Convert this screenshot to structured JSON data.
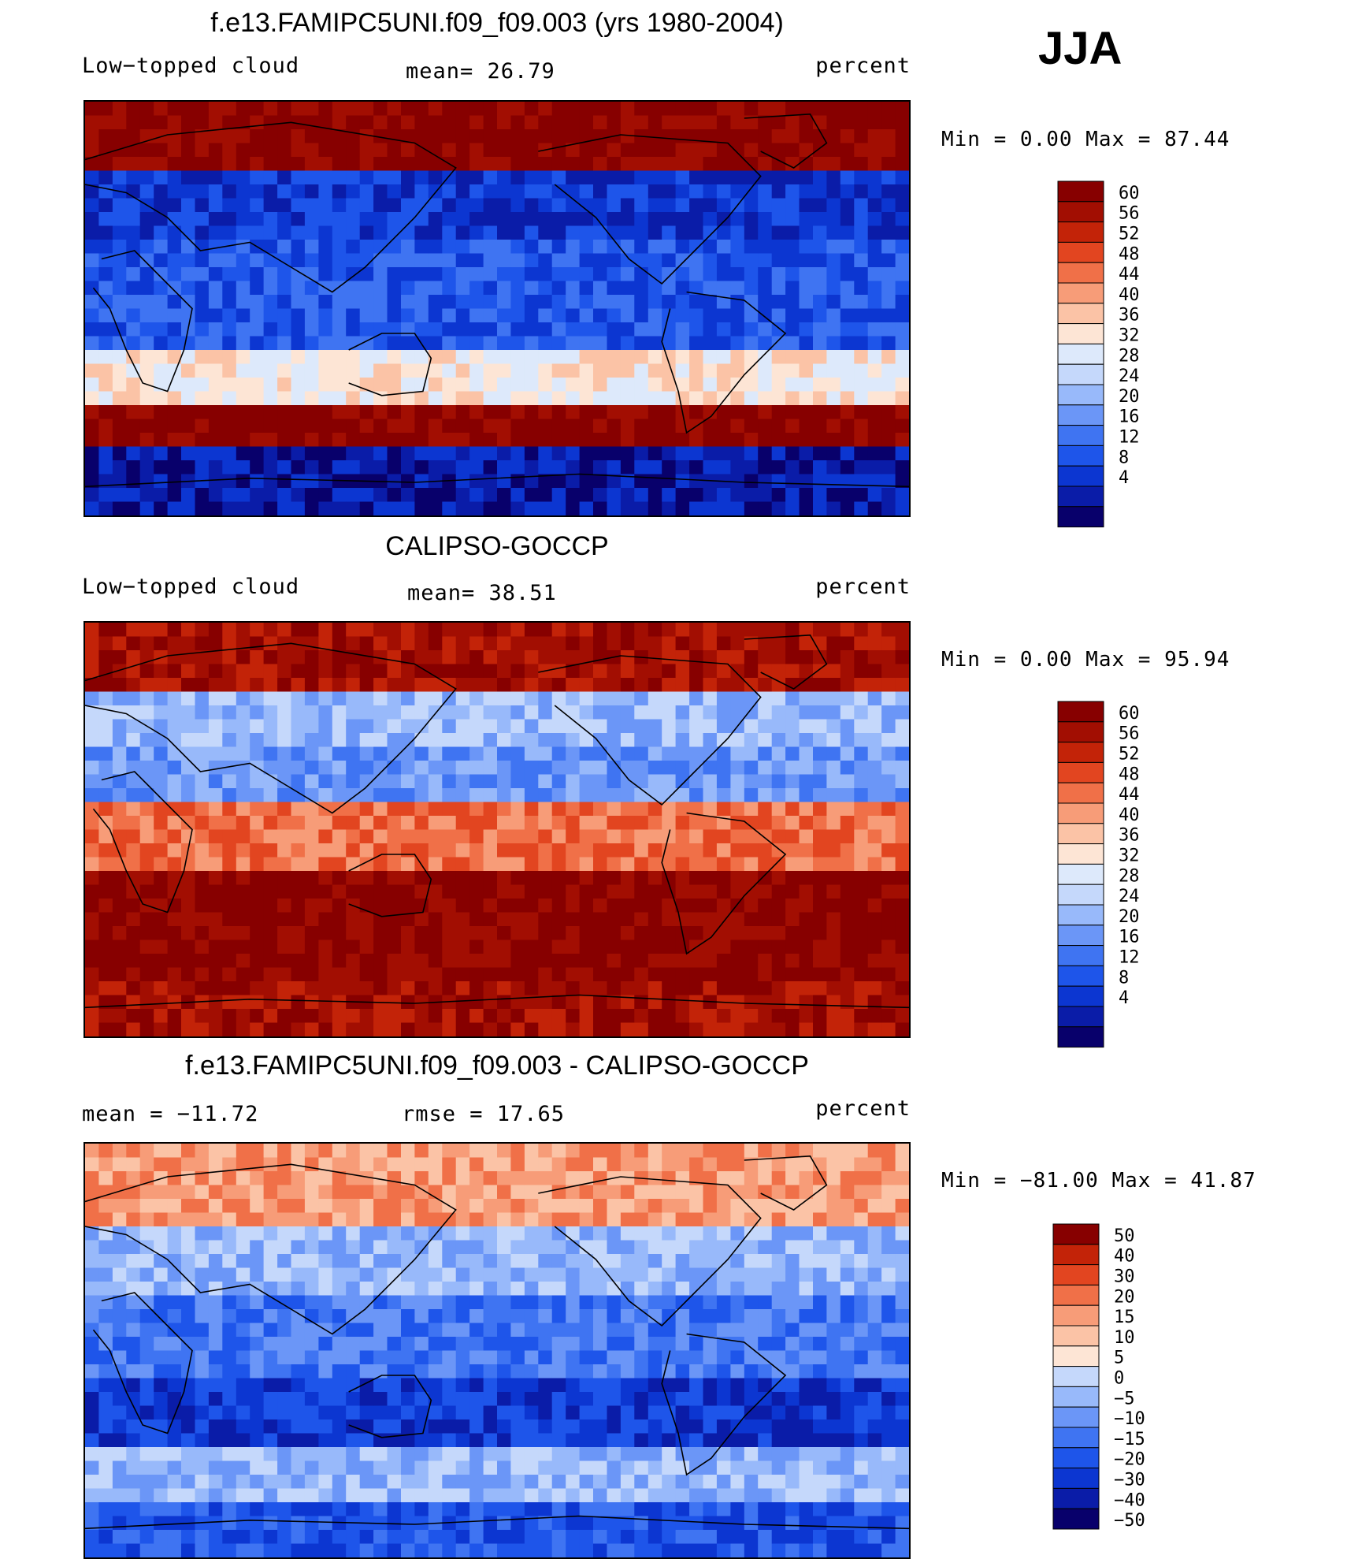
{
  "season": "JJA",
  "palettes": {
    "abs": [
      "#08006b",
      "#0a1ca8",
      "#0c36d1",
      "#1e55ea",
      "#3f74f2",
      "#6b96f7",
      "#98b9fa",
      "#c5d8fb",
      "#dde9fb",
      "#fde5d5",
      "#fbc3a6",
      "#f79c78",
      "#f07048",
      "#e24520",
      "#c32308",
      "#a20e02",
      "#870000"
    ],
    "diff": [
      "#08006b",
      "#0a1ca8",
      "#0c36d1",
      "#1e55ea",
      "#3f74f2",
      "#6b96f7",
      "#98b9fa",
      "#c5d8fb",
      "#fde5d5",
      "#fbc3a6",
      "#f79c78",
      "#f07048",
      "#e24520",
      "#c32308",
      "#870000"
    ],
    "land": "#000000",
    "missing": "#ffffff"
  },
  "panels": [
    {
      "title": "f.e13.FAMIPC5UNI.f09_f09.003 (yrs 1980-2004)",
      "left_label": "Low−topped cloud",
      "center_label": "mean=   26.79",
      "right_label": "percent",
      "minmax": "Min =     0.00 Max =    87.44",
      "variant": "model"
    },
    {
      "title": "CALIPSO-GOCCP",
      "left_label": "Low−topped cloud",
      "center_label": "mean=   38.51",
      "right_label": "percent",
      "minmax": "Min =     0.00 Max =    95.94",
      "variant": "obs"
    },
    {
      "title": "f.e13.FAMIPC5UNI.f09_f09.003 - CALIPSO-GOCCP",
      "left_label": "mean = −11.72",
      "center_label": "rmse =   17.65",
      "right_label": "percent",
      "minmax": "Min = −81.00 Max =   41.87",
      "variant": "diff"
    }
  ],
  "chart_data": [
    {
      "type": "heatmap",
      "title": "f.e13.FAMIPC5UNI.f09_f09.003 (yrs 1980-2004)",
      "variable": "Low-topped cloud",
      "units": "percent",
      "mean": 26.79,
      "min": 0.0,
      "max": 87.44,
      "colorbar_levels": [
        60,
        56,
        52,
        48,
        44,
        40,
        36,
        32,
        28,
        24,
        20,
        16,
        12,
        8,
        4
      ]
    },
    {
      "type": "heatmap",
      "title": "CALIPSO-GOCCP",
      "variable": "Low-topped cloud",
      "units": "percent",
      "mean": 38.51,
      "min": 0.0,
      "max": 95.94,
      "colorbar_levels": [
        60,
        56,
        52,
        48,
        44,
        40,
        36,
        32,
        28,
        24,
        20,
        16,
        12,
        8,
        4
      ]
    },
    {
      "type": "heatmap",
      "title": "f.e13.FAMIPC5UNI.f09_f09.003 - CALIPSO-GOCCP",
      "units": "percent",
      "mean": -11.72,
      "rmse": 17.65,
      "min": -81.0,
      "max": 41.87,
      "colorbar_levels": [
        "50",
        "40",
        "30",
        "20",
        "15",
        "10",
        "5",
        "0",
        "−5",
        "−10",
        "−15",
        "−20",
        "−30",
        "−40",
        "−50"
      ]
    }
  ]
}
